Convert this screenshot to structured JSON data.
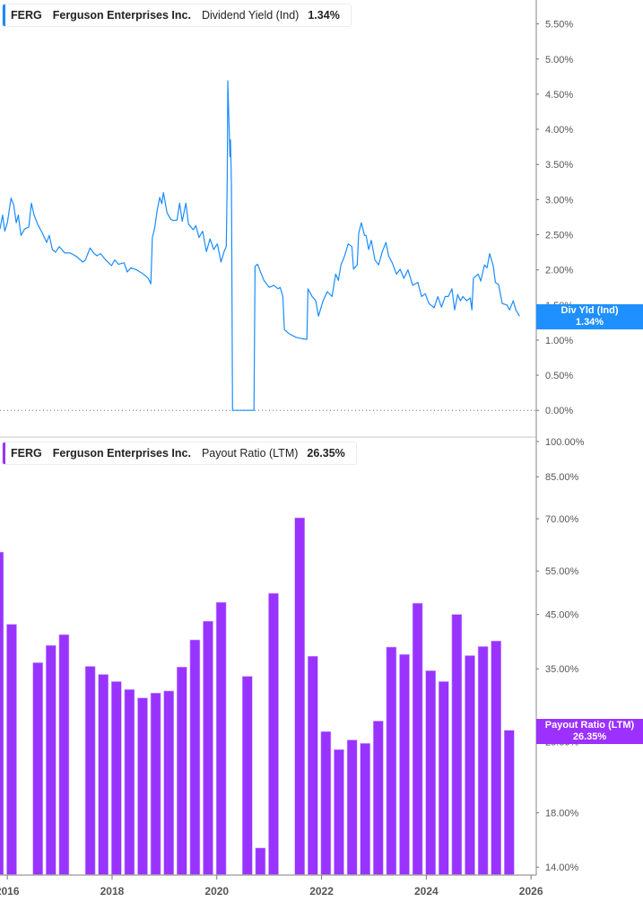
{
  "colors": {
    "yield_line": "#1a8cff",
    "payout_bar": "#9933ff",
    "yield_tag": "#1e90ff",
    "payout_tag": "#9b30ff"
  },
  "top_legend": {
    "ticker": "FERG",
    "company": "Ferguson Enterprises Inc.",
    "metric": "Dividend Yield (Ind)",
    "value": "1.34%"
  },
  "bottom_legend": {
    "ticker": "FERG",
    "company": "Ferguson Enterprises Inc.",
    "metric": "Payout Ratio (LTM)",
    "value": "26.35%"
  },
  "top_tag": {
    "label": "Div Yld (Ind)",
    "value": "1.34%"
  },
  "bottom_tag": {
    "label": "Payout Ratio (LTM)",
    "value": "26.35%"
  },
  "chart_data": [
    {
      "type": "line",
      "title": "",
      "series_label": "Dividend Yield (Ind)",
      "x_unit": "year",
      "xlim": [
        2015.86,
        2026.1
      ],
      "ylim": [
        -0.38,
        5.84
      ],
      "y_scale": "linear",
      "y_axis_position": "right",
      "y_ticks": [
        "0.00%",
        "0.50%",
        "1.00%",
        "1.50%",
        "2.00%",
        "2.50%",
        "3.00%",
        "3.50%",
        "4.00%",
        "4.50%",
        "5.00%",
        "5.50%"
      ],
      "y_tick_values": [
        0,
        0.5,
        1,
        1.5,
        2,
        2.5,
        3,
        3.5,
        4,
        4.5,
        5,
        5.5
      ],
      "zero_line": "dotted",
      "grid": false,
      "points": [
        [
          2015.86,
          2.58
        ],
        [
          2015.91,
          2.78
        ],
        [
          2015.95,
          2.55
        ],
        [
          2016.0,
          2.67
        ],
        [
          2016.07,
          3.02
        ],
        [
          2016.12,
          2.93
        ],
        [
          2016.17,
          2.67
        ],
        [
          2016.21,
          2.78
        ],
        [
          2016.26,
          2.49
        ],
        [
          2016.33,
          2.58
        ],
        [
          2016.41,
          2.61
        ],
        [
          2016.46,
          2.95
        ],
        [
          2016.51,
          2.78
        ],
        [
          2016.58,
          2.65
        ],
        [
          2016.67,
          2.52
        ],
        [
          2016.75,
          2.39
        ],
        [
          2016.8,
          2.49
        ],
        [
          2016.86,
          2.29
        ],
        [
          2016.92,
          2.25
        ],
        [
          2016.99,
          2.33
        ],
        [
          2017.1,
          2.24
        ],
        [
          2017.2,
          2.24
        ],
        [
          2017.32,
          2.19
        ],
        [
          2017.44,
          2.11
        ],
        [
          2017.49,
          2.14
        ],
        [
          2017.58,
          2.31
        ],
        [
          2017.66,
          2.23
        ],
        [
          2017.71,
          2.2
        ],
        [
          2017.78,
          2.23
        ],
        [
          2017.88,
          2.14
        ],
        [
          2017.99,
          2.06
        ],
        [
          2018.05,
          2.14
        ],
        [
          2018.12,
          2.08
        ],
        [
          2018.23,
          2.1
        ],
        [
          2018.29,
          1.97
        ],
        [
          2018.36,
          2.03
        ],
        [
          2018.47,
          2.0
        ],
        [
          2018.6,
          1.94
        ],
        [
          2018.69,
          1.88
        ],
        [
          2018.74,
          1.8
        ],
        [
          2018.77,
          2.46
        ],
        [
          2018.81,
          2.58
        ],
        [
          2018.86,
          2.84
        ],
        [
          2018.91,
          3.03
        ],
        [
          2018.95,
          2.94
        ],
        [
          2018.98,
          3.1
        ],
        [
          2019.05,
          2.81
        ],
        [
          2019.12,
          2.72
        ],
        [
          2019.17,
          2.7
        ],
        [
          2019.24,
          2.71
        ],
        [
          2019.29,
          2.95
        ],
        [
          2019.34,
          2.69
        ],
        [
          2019.41,
          2.95
        ],
        [
          2019.46,
          2.65
        ],
        [
          2019.55,
          2.57
        ],
        [
          2019.6,
          2.63
        ],
        [
          2019.66,
          2.46
        ],
        [
          2019.73,
          2.55
        ],
        [
          2019.8,
          2.26
        ],
        [
          2019.87,
          2.44
        ],
        [
          2019.94,
          2.29
        ],
        [
          2020.01,
          2.37
        ],
        [
          2020.08,
          2.11
        ],
        [
          2020.14,
          2.26
        ],
        [
          2020.18,
          2.33
        ],
        [
          2020.2,
          3.29
        ],
        [
          2020.21,
          4.69
        ],
        [
          2020.25,
          3.61
        ],
        [
          2020.26,
          3.85
        ],
        [
          2020.28,
          3.2
        ],
        [
          2020.3,
          0
        ],
        [
          2020.71,
          0
        ],
        [
          2020.73,
          2.05
        ],
        [
          2020.78,
          2.08
        ],
        [
          2020.83,
          1.98
        ],
        [
          2020.9,
          1.85
        ],
        [
          2021.0,
          1.75
        ],
        [
          2021.09,
          1.78
        ],
        [
          2021.17,
          1.73
        ],
        [
          2021.21,
          1.75
        ],
        [
          2021.26,
          1.62
        ],
        [
          2021.29,
          1.15
        ],
        [
          2021.38,
          1.09
        ],
        [
          2021.51,
          1.04
        ],
        [
          2021.63,
          1.02
        ],
        [
          2021.72,
          1.01
        ],
        [
          2021.74,
          1.73
        ],
        [
          2021.82,
          1.62
        ],
        [
          2021.89,
          1.56
        ],
        [
          2021.94,
          1.34
        ],
        [
          2022.03,
          1.56
        ],
        [
          2022.11,
          1.69
        ],
        [
          2022.2,
          1.62
        ],
        [
          2022.27,
          1.94
        ],
        [
          2022.32,
          1.85
        ],
        [
          2022.37,
          2.07
        ],
        [
          2022.44,
          2.2
        ],
        [
          2022.51,
          2.37
        ],
        [
          2022.58,
          2.33
        ],
        [
          2022.61,
          2.01
        ],
        [
          2022.68,
          2.07
        ],
        [
          2022.71,
          2.52
        ],
        [
          2022.76,
          2.67
        ],
        [
          2022.82,
          2.49
        ],
        [
          2022.85,
          2.49
        ],
        [
          2022.9,
          2.29
        ],
        [
          2022.95,
          2.42
        ],
        [
          2023.02,
          2.14
        ],
        [
          2023.09,
          2.07
        ],
        [
          2023.16,
          2.26
        ],
        [
          2023.23,
          2.39
        ],
        [
          2023.28,
          2.2
        ],
        [
          2023.35,
          2.1
        ],
        [
          2023.43,
          1.94
        ],
        [
          2023.5,
          2.01
        ],
        [
          2023.57,
          1.88
        ],
        [
          2023.65,
          2.0
        ],
        [
          2023.74,
          1.78
        ],
        [
          2023.84,
          1.82
        ],
        [
          2023.91,
          1.62
        ],
        [
          2023.98,
          1.66
        ],
        [
          2024.05,
          1.52
        ],
        [
          2024.15,
          1.46
        ],
        [
          2024.22,
          1.62
        ],
        [
          2024.29,
          1.47
        ],
        [
          2024.36,
          1.62
        ],
        [
          2024.42,
          1.62
        ],
        [
          2024.49,
          1.73
        ],
        [
          2024.54,
          1.43
        ],
        [
          2024.6,
          1.65
        ],
        [
          2024.65,
          1.56
        ],
        [
          2024.7,
          1.62
        ],
        [
          2024.77,
          1.56
        ],
        [
          2024.84,
          1.6
        ],
        [
          2024.87,
          1.43
        ],
        [
          2024.9,
          1.88
        ],
        [
          2024.99,
          1.94
        ],
        [
          2025.04,
          1.84
        ],
        [
          2025.11,
          2.07
        ],
        [
          2025.16,
          2.03
        ],
        [
          2025.21,
          2.23
        ],
        [
          2025.28,
          2.05
        ],
        [
          2025.32,
          1.82
        ],
        [
          2025.38,
          1.79
        ],
        [
          2025.45,
          1.52
        ],
        [
          2025.54,
          1.5
        ],
        [
          2025.59,
          1.43
        ],
        [
          2025.66,
          1.56
        ],
        [
          2025.71,
          1.43
        ],
        [
          2025.78,
          1.34
        ]
      ]
    },
    {
      "type": "bar",
      "title": "",
      "series_label": "Payout Ratio (LTM)",
      "xlim": [
        2015.86,
        2026.1
      ],
      "ylim": [
        13.5,
        100
      ],
      "y_scale": "log",
      "y_axis_position": "right",
      "y_ticks": [
        "14.00%",
        "18.00%",
        "25.00%",
        "35.00%",
        "45.00%",
        "55.00%",
        "70.00%",
        "85.00%",
        "100.00%"
      ],
      "y_tick_values": [
        14,
        18,
        25,
        35,
        45,
        55,
        70,
        85,
        100
      ],
      "x_ticks": [
        "2016",
        "2018",
        "2020",
        "2022",
        "2024",
        "2026"
      ],
      "x_tick_values": [
        2016,
        2018,
        2020,
        2022,
        2024,
        2026
      ],
      "grid": false,
      "categories": [
        "2015-10",
        "2016-01",
        "2016-07",
        "2016-10",
        "2017-01",
        "2017-07",
        "2017-10",
        "2018-01",
        "2018-04",
        "2018-07",
        "2018-10",
        "2019-01",
        "2019-04",
        "2019-07",
        "2019-10",
        "2020-01",
        "2020-07",
        "2020-10",
        "2021-01",
        "2021-07",
        "2021-10",
        "2022-01",
        "2022-04",
        "2022-07",
        "2022-10",
        "2023-01",
        "2023-04",
        "2023-07",
        "2023-10",
        "2024-01",
        "2024-04",
        "2024-07",
        "2024-10",
        "2025-01",
        "2025-04",
        "2025-07"
      ],
      "values": [
        60,
        43,
        36,
        39,
        41,
        35.4,
        34.1,
        33,
        31.8,
        30.6,
        31.3,
        31.6,
        35.3,
        40,
        43.6,
        47.6,
        33.8,
        15.3,
        49.6,
        70.3,
        37.1,
        26.2,
        24.1,
        25.2,
        24.8,
        27.5,
        38.7,
        37.4,
        47.4,
        34.7,
        33,
        45,
        37.2,
        38.8,
        39.8,
        26.35
      ]
    }
  ]
}
